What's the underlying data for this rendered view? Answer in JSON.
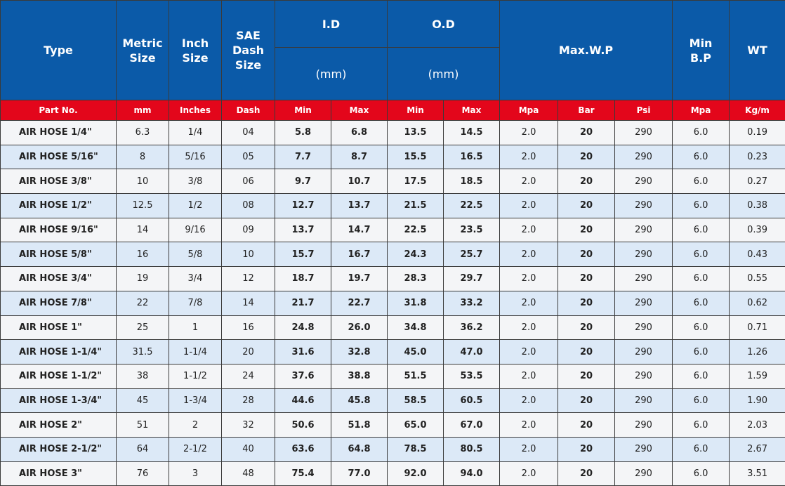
{
  "header": {
    "row1": [
      "Type",
      "Metric Size",
      "Inch Size",
      "SAE Dash Size",
      "I.D",
      "O.D",
      "Max.W.P",
      "Min B.P",
      "WT"
    ],
    "row2": [
      "(mm)",
      "(mm)"
    ]
  },
  "units": [
    "Part No.",
    "mm",
    "Inches",
    "Dash",
    "Min",
    "Max",
    "Min",
    "Max",
    "Mpa",
    "Bar",
    "Psi",
    "Mpa",
    "Kg/m"
  ],
  "table": {
    "rows": [
      [
        "AIR HOSE 1/4\"",
        "6.3",
        "1/4",
        "04",
        "5.8",
        "6.8",
        "13.5",
        "14.5",
        "2.0",
        "20",
        "290",
        "6.0",
        "0.19"
      ],
      [
        "AIR HOSE 5/16\"",
        "8",
        "5/16",
        "05",
        "7.7",
        "8.7",
        "15.5",
        "16.5",
        "2.0",
        "20",
        "290",
        "6.0",
        "0.23"
      ],
      [
        "AIR HOSE 3/8\"",
        "10",
        "3/8",
        "06",
        "9.7",
        "10.7",
        "17.5",
        "18.5",
        "2.0",
        "20",
        "290",
        "6.0",
        "0.27"
      ],
      [
        "AIR HOSE 1/2\"",
        "12.5",
        "1/2",
        "08",
        "12.7",
        "13.7",
        "21.5",
        "22.5",
        "2.0",
        "20",
        "290",
        "6.0",
        "0.38"
      ],
      [
        "AIR HOSE 9/16\"",
        "14",
        "9/16",
        "09",
        "13.7",
        "14.7",
        "22.5",
        "23.5",
        "2.0",
        "20",
        "290",
        "6.0",
        "0.39"
      ],
      [
        "AIR HOSE 5/8\"",
        "16",
        "5/8",
        "10",
        "15.7",
        "16.7",
        "24.3",
        "25.7",
        "2.0",
        "20",
        "290",
        "6.0",
        "0.43"
      ],
      [
        "AIR HOSE 3/4\"",
        "19",
        "3/4",
        "12",
        "18.7",
        "19.7",
        "28.3",
        "29.7",
        "2.0",
        "20",
        "290",
        "6.0",
        "0.55"
      ],
      [
        "AIR HOSE 7/8\"",
        "22",
        "7/8",
        "14",
        "21.7",
        "22.7",
        "31.8",
        "33.2",
        "2.0",
        "20",
        "290",
        "6.0",
        "0.62"
      ],
      [
        "AIR HOSE 1\"",
        "25",
        "1",
        "16",
        "24.8",
        "26.0",
        "34.8",
        "36.2",
        "2.0",
        "20",
        "290",
        "6.0",
        "0.71"
      ],
      [
        "AIR HOSE 1-1/4\"",
        "31.5",
        "1-1/4",
        "20",
        "31.6",
        "32.8",
        "45.0",
        "47.0",
        "2.0",
        "20",
        "290",
        "6.0",
        "1.26"
      ],
      [
        "AIR HOSE 1-1/2\"",
        "38",
        "1-1/2",
        "24",
        "37.6",
        "38.8",
        "51.5",
        "53.5",
        "2.0",
        "20",
        "290",
        "6.0",
        "1.59"
      ],
      [
        "AIR HOSE 1-3/4\"",
        "45",
        "1-3/4",
        "28",
        "44.6",
        "45.8",
        "58.5",
        "60.5",
        "2.0",
        "20",
        "290",
        "6.0",
        "1.90"
      ],
      [
        "AIR HOSE 2\"",
        "51",
        "2",
        "32",
        "50.6",
        "51.8",
        "65.0",
        "67.0",
        "2.0",
        "20",
        "290",
        "6.0",
        "2.03"
      ],
      [
        "AIR HOSE 2-1/2\"",
        "64",
        "2-1/2",
        "40",
        "63.6",
        "64.8",
        "78.5",
        "80.5",
        "2.0",
        "20",
        "290",
        "6.0",
        "2.67"
      ],
      [
        "AIR HOSE 3\"",
        "76",
        "3",
        "48",
        "75.4",
        "77.0",
        "92.0",
        "94.0",
        "2.0",
        "20",
        "290",
        "6.0",
        "3.51"
      ]
    ]
  }
}
